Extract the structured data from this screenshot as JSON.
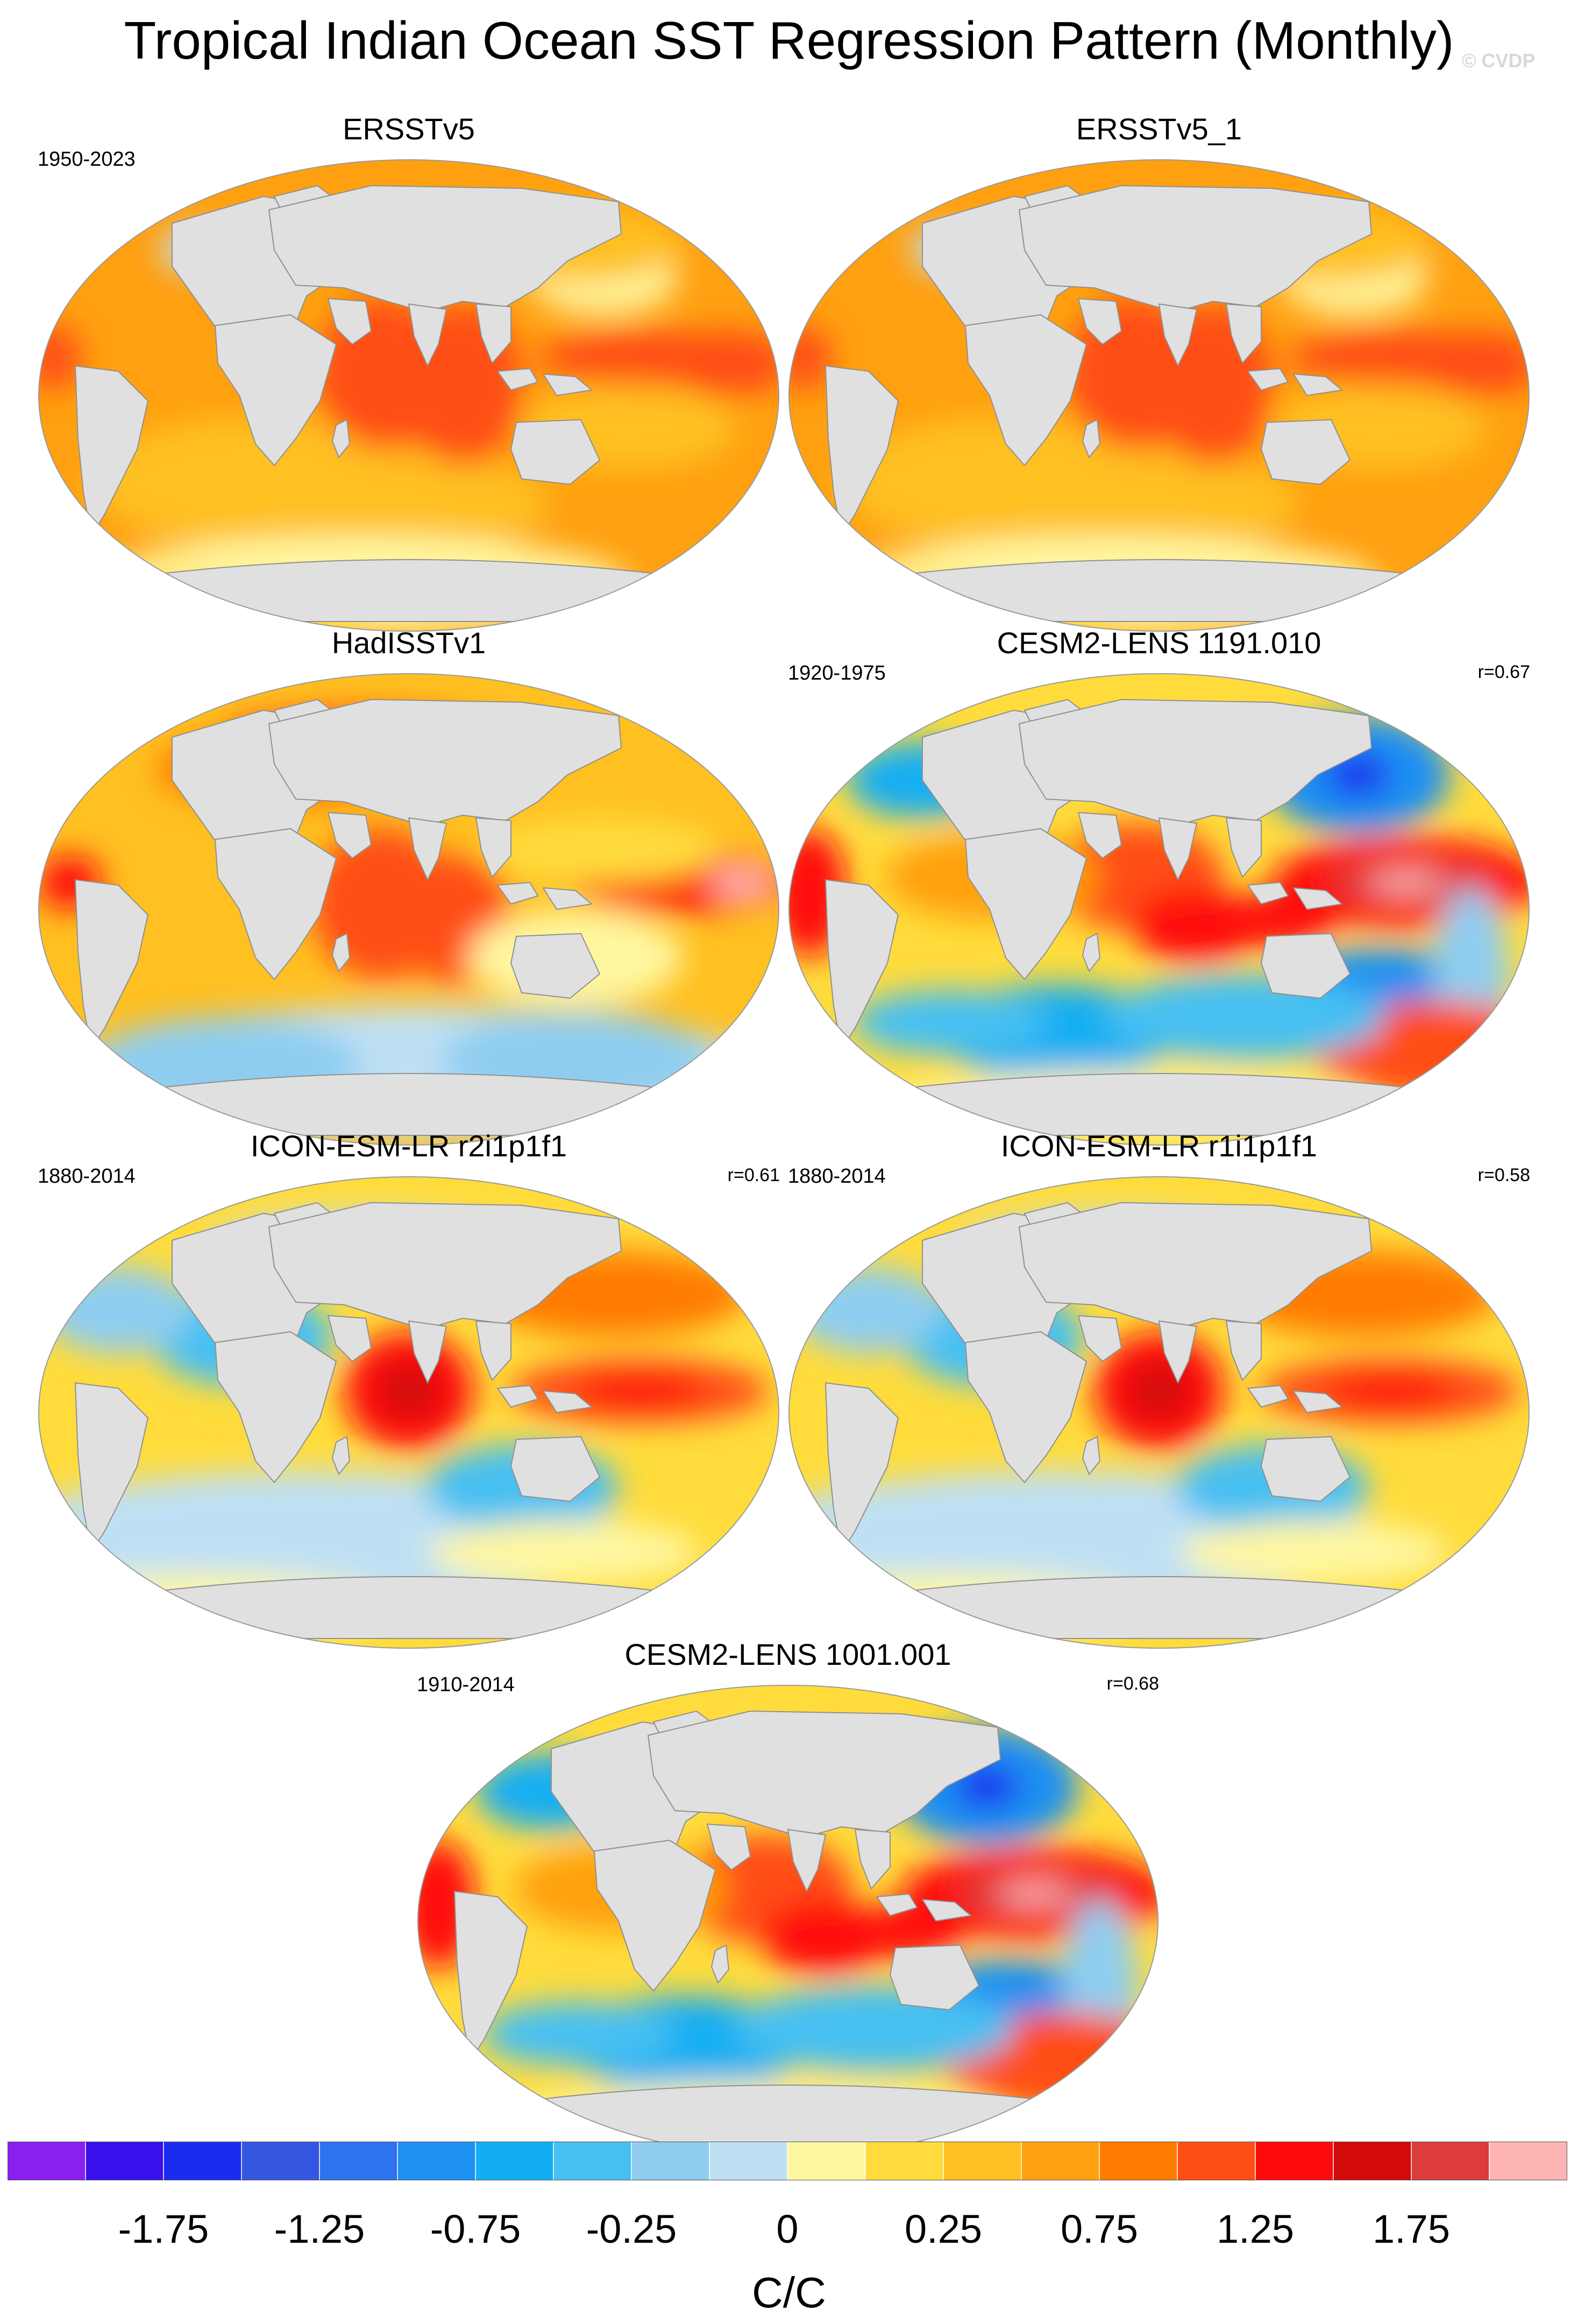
{
  "title": "Tropical Indian Ocean SST Regression Pattern (Monthly)",
  "credit": "© CVDP",
  "panels": [
    {
      "id": "ersstv5",
      "title": "ERSSTv5",
      "period": "1950-2023",
      "corr": "",
      "pattern": "obs"
    },
    {
      "id": "ersstv5_1",
      "title": "ERSSTv5_1",
      "period": "",
      "corr": "",
      "pattern": "obs"
    },
    {
      "id": "hadisst",
      "title": "HadISSTv1",
      "period": "",
      "corr": "",
      "pattern": "had"
    },
    {
      "id": "cesm2-1191",
      "title": "CESM2-LENS 1191.010",
      "period": "1920-1975",
      "corr": "r=0.67",
      "pattern": "cesm"
    },
    {
      "id": "icon-r2",
      "title": "ICON-ESM-LR r2i1p1f1",
      "period": "1880-2014",
      "corr": "r=0.61",
      "pattern": "icon"
    },
    {
      "id": "icon-r1",
      "title": "ICON-ESM-LR r1i1p1f1",
      "period": "1880-2014",
      "corr": "r=0.58",
      "pattern": "icon"
    },
    {
      "id": "cesm2-1001",
      "title": "CESM2-LENS 1001.001",
      "period": "1910-2014",
      "corr": "r=0.68",
      "pattern": "cesm"
    }
  ],
  "colorbar": {
    "units": "C/C",
    "colors": [
      "#8a1ff0",
      "#3a10ee",
      "#1a2cf0",
      "#3456e0",
      "#2d72ee",
      "#1e90f2",
      "#12aef2",
      "#46c0f2",
      "#8ecdf0",
      "#bfe0f4",
      "#fff7a0",
      "#ffdc3c",
      "#ffc021",
      "#ffa010",
      "#ff7c00",
      "#ff4e14",
      "#ff0a0a",
      "#d20a0a",
      "#dc3c3c",
      "#ffb4b4"
    ],
    "ticks": [
      {
        "label": "-1.75",
        "index": 2
      },
      {
        "label": "-1.25",
        "index": 4
      },
      {
        "label": "-0.75",
        "index": 6
      },
      {
        "label": "-0.25",
        "index": 8
      },
      {
        "label": "0",
        "index": 10
      },
      {
        "label": "0.25",
        "index": 12
      },
      {
        "label": "0.75",
        "index": 14
      },
      {
        "label": "1.25",
        "index": 16
      },
      {
        "label": "1.75",
        "index": 18
      }
    ]
  },
  "colors": {
    "land": "#e0e0e0",
    "coast": "#909090",
    "ocean_base": "#ffc021"
  }
}
